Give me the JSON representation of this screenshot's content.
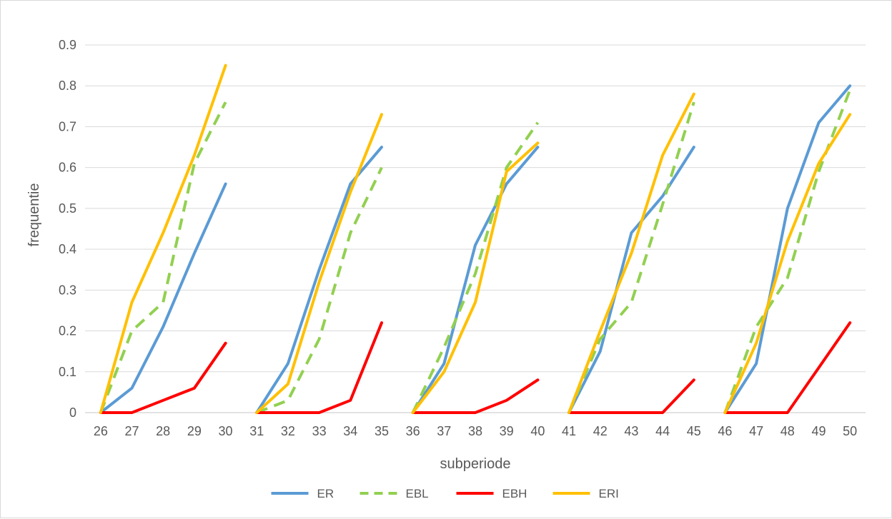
{
  "chart_data": {
    "type": "line",
    "title": "",
    "xlabel": "subperiode",
    "ylabel": "frequentie",
    "ylim": [
      0,
      0.9
    ],
    "y_ticks": [
      "0",
      "0.1",
      "0.2",
      "0.3",
      "0.4",
      "0.5",
      "0.6",
      "0.7",
      "0.8",
      "0.9"
    ],
    "y_tick_values": [
      0,
      0.1,
      0.2,
      0.3,
      0.4,
      0.5,
      0.6,
      0.7,
      0.8,
      0.9
    ],
    "categories": [
      "26",
      "27",
      "28",
      "29",
      "30",
      "31",
      "32",
      "33",
      "34",
      "35",
      "36",
      "37",
      "38",
      "39",
      "40",
      "41",
      "42",
      "43",
      "44",
      "45",
      "46",
      "47",
      "48",
      "49",
      "50"
    ],
    "segment_size": 5,
    "grid": "horizontal",
    "legend_position": "bottom",
    "series": [
      {
        "name": "ER",
        "color": "#5b9bd5",
        "dash": "solid",
        "values": [
          0,
          0.06,
          0.21,
          0.39,
          0.56,
          0,
          0.12,
          0.35,
          0.56,
          0.65,
          0,
          0.12,
          0.41,
          0.56,
          0.65,
          0,
          0.15,
          0.44,
          0.53,
          0.65,
          0,
          0.12,
          0.5,
          0.71,
          0.8
        ]
      },
      {
        "name": "EBL",
        "color": "#92d050",
        "dash": "dashed",
        "values": [
          0,
          0.2,
          0.27,
          0.61,
          0.76,
          0,
          0.03,
          0.18,
          0.44,
          0.6,
          0,
          0.16,
          0.34,
          0.6,
          0.71,
          0,
          0.18,
          0.27,
          0.51,
          0.76,
          0,
          0.21,
          0.33,
          0.59,
          0.79
        ]
      },
      {
        "name": "EBH",
        "color": "#ff0000",
        "dash": "solid",
        "values": [
          0,
          0,
          0.03,
          0.06,
          0.17,
          0,
          0,
          0,
          0.03,
          0.22,
          0,
          0,
          0,
          0.03,
          0.08,
          0,
          0,
          0,
          0,
          0.08,
          0,
          0,
          0,
          0.11,
          0.22
        ]
      },
      {
        "name": "ERI",
        "color": "#ffc000",
        "dash": "solid",
        "values": [
          0,
          0.27,
          0.44,
          0.63,
          0.85,
          0,
          0.07,
          0.32,
          0.54,
          0.73,
          0,
          0.1,
          0.27,
          0.59,
          0.66,
          0,
          0.2,
          0.39,
          0.63,
          0.78,
          0,
          0.17,
          0.42,
          0.61,
          0.73
        ]
      }
    ]
  }
}
